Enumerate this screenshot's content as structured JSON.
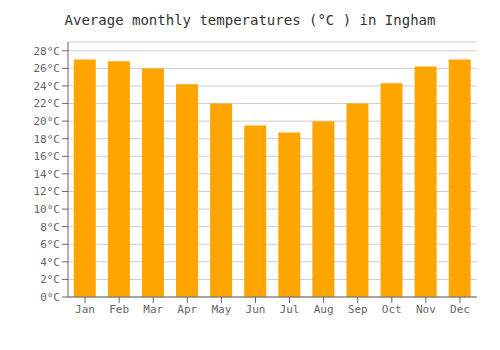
{
  "chart_data": {
    "type": "bar",
    "title": "Average monthly temperatures (°C ) in Ingham",
    "categories": [
      "Jan",
      "Feb",
      "Mar",
      "Apr",
      "May",
      "Jun",
      "Jul",
      "Aug",
      "Sep",
      "Oct",
      "Nov",
      "Dec"
    ],
    "values": [
      27.0,
      26.8,
      26.0,
      24.2,
      22.0,
      19.5,
      18.7,
      20.0,
      22.0,
      24.3,
      26.2,
      27.0
    ],
    "color": "#FFA500",
    "ylim": [
      0,
      29
    ],
    "yticks": [
      {
        "value": 0,
        "label": "0°C"
      },
      {
        "value": 2,
        "label": "2°C"
      },
      {
        "value": 4,
        "label": "4°C"
      },
      {
        "value": 6,
        "label": "6°C"
      },
      {
        "value": 8,
        "label": "8°C"
      },
      {
        "value": 10,
        "label": "10°C"
      },
      {
        "value": 12,
        "label": "12°C"
      },
      {
        "value": 14,
        "label": "14°C"
      },
      {
        "value": 16,
        "label": "16°C"
      },
      {
        "value": 18,
        "label": "18°C"
      },
      {
        "value": 20,
        "label": "20°C"
      },
      {
        "value": 22,
        "label": "22°C"
      },
      {
        "value": 24,
        "label": "24°C"
      },
      {
        "value": 26,
        "label": "26°C"
      },
      {
        "value": 28,
        "label": "28°C"
      }
    ],
    "grid": true
  }
}
